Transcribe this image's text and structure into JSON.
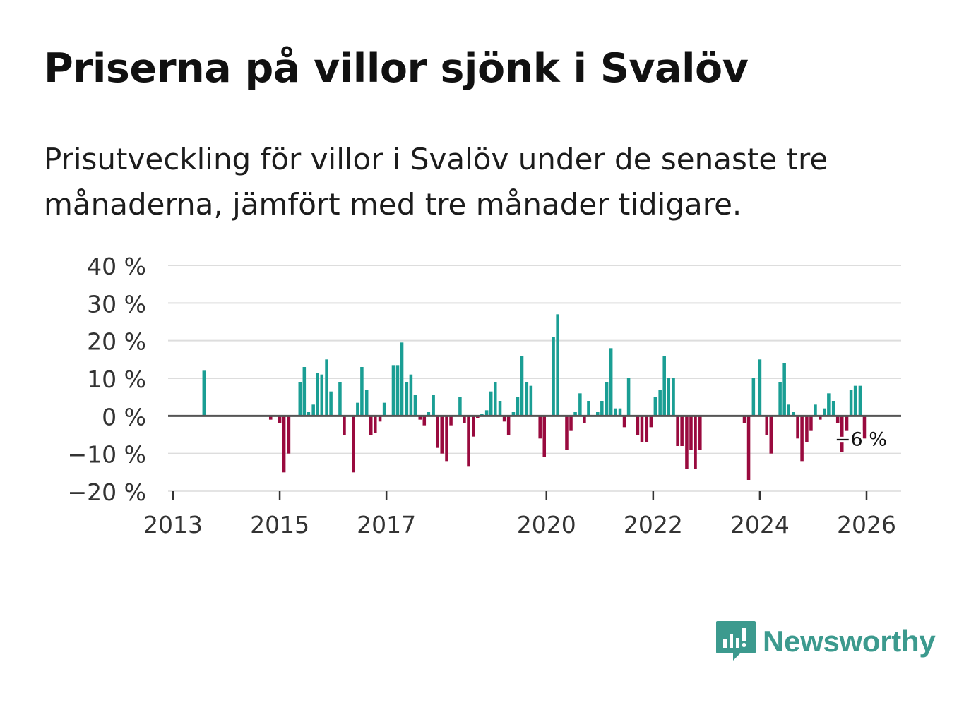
{
  "header": {
    "title": "Priserna på villor sjönk i Svalöv",
    "subtitle": "Prisutveckling för villor i Svalöv under de senaste tre månaderna, jämfört med tre månader tidigare."
  },
  "brand": {
    "name": "Newsworthy",
    "icon": "newsworthy-logo-icon",
    "color": "#3c9a8e"
  },
  "colors": {
    "positive": "#1a9e94",
    "negative": "#990a3e",
    "grid": "#dddddd",
    "zero_line": "#555555"
  },
  "chart_data": {
    "type": "bar",
    "title": "Priserna på villor sjönk i Svalöv",
    "xlabel": "",
    "ylabel": "",
    "ylim": [
      -20,
      40
    ],
    "yticks": [
      40,
      30,
      20,
      10,
      0,
      -10,
      -20
    ],
    "ytick_labels": [
      "40 %",
      "30 %",
      "20 %",
      "10 %",
      "0 %",
      "−10 %",
      "−20 %"
    ],
    "xlim": [
      2013,
      2026.4
    ],
    "xticks": [
      2013,
      2015,
      2017,
      2020,
      2022,
      2024,
      2026
    ],
    "xtick_labels": [
      "2013",
      "2015",
      "2017",
      "2020",
      "2022",
      "2024",
      "2026"
    ],
    "grid": true,
    "bar_width_years": 0.06,
    "annotation": {
      "text": "−6 %",
      "x": 2025.92,
      "y": -6
    },
    "points": [
      {
        "x": 2013.58,
        "y": 12
      },
      {
        "x": 2014.83,
        "y": -1
      },
      {
        "x": 2015.0,
        "y": -2
      },
      {
        "x": 2015.08,
        "y": -15
      },
      {
        "x": 2015.17,
        "y": -10
      },
      {
        "x": 2015.38,
        "y": 9
      },
      {
        "x": 2015.46,
        "y": 13
      },
      {
        "x": 2015.54,
        "y": 1
      },
      {
        "x": 2015.63,
        "y": 3
      },
      {
        "x": 2015.71,
        "y": 11.5
      },
      {
        "x": 2015.79,
        "y": 11
      },
      {
        "x": 2015.88,
        "y": 15
      },
      {
        "x": 2015.96,
        "y": 6.5
      },
      {
        "x": 2016.13,
        "y": 9
      },
      {
        "x": 2016.21,
        "y": -5
      },
      {
        "x": 2016.38,
        "y": -15
      },
      {
        "x": 2016.46,
        "y": 3.5
      },
      {
        "x": 2016.54,
        "y": 13
      },
      {
        "x": 2016.63,
        "y": 7
      },
      {
        "x": 2016.71,
        "y": -5
      },
      {
        "x": 2016.79,
        "y": -4.5
      },
      {
        "x": 2016.88,
        "y": -1.5
      },
      {
        "x": 2016.96,
        "y": 3.5
      },
      {
        "x": 2017.13,
        "y": 13.5
      },
      {
        "x": 2017.21,
        "y": 13.5
      },
      {
        "x": 2017.29,
        "y": 19.5
      },
      {
        "x": 2017.38,
        "y": 9
      },
      {
        "x": 2017.46,
        "y": 11
      },
      {
        "x": 2017.54,
        "y": 5.5
      },
      {
        "x": 2017.63,
        "y": -1
      },
      {
        "x": 2017.71,
        "y": -2.5
      },
      {
        "x": 2017.79,
        "y": 1
      },
      {
        "x": 2017.88,
        "y": 5.5
      },
      {
        "x": 2017.96,
        "y": -8.5
      },
      {
        "x": 2018.04,
        "y": -10
      },
      {
        "x": 2018.13,
        "y": -12
      },
      {
        "x": 2018.21,
        "y": -2.5
      },
      {
        "x": 2018.38,
        "y": 5
      },
      {
        "x": 2018.46,
        "y": -2
      },
      {
        "x": 2018.54,
        "y": -13.5
      },
      {
        "x": 2018.63,
        "y": -5.5
      },
      {
        "x": 2018.71,
        "y": -0.5
      },
      {
        "x": 2018.79,
        "y": 0.5
      },
      {
        "x": 2018.88,
        "y": 1.5
      },
      {
        "x": 2018.96,
        "y": 6.5
      },
      {
        "x": 2019.04,
        "y": 9
      },
      {
        "x": 2019.13,
        "y": 4
      },
      {
        "x": 2019.21,
        "y": -1.5
      },
      {
        "x": 2019.29,
        "y": -5
      },
      {
        "x": 2019.38,
        "y": 1
      },
      {
        "x": 2019.46,
        "y": 5
      },
      {
        "x": 2019.54,
        "y": 16
      },
      {
        "x": 2019.63,
        "y": 9
      },
      {
        "x": 2019.71,
        "y": 8
      },
      {
        "x": 2019.88,
        "y": -6
      },
      {
        "x": 2019.96,
        "y": -11
      },
      {
        "x": 2020.13,
        "y": 21
      },
      {
        "x": 2020.21,
        "y": 27
      },
      {
        "x": 2020.38,
        "y": -9
      },
      {
        "x": 2020.46,
        "y": -4
      },
      {
        "x": 2020.54,
        "y": 1
      },
      {
        "x": 2020.63,
        "y": 6
      },
      {
        "x": 2020.71,
        "y": -2
      },
      {
        "x": 2020.79,
        "y": 4
      },
      {
        "x": 2020.96,
        "y": 1
      },
      {
        "x": 2021.04,
        "y": 4
      },
      {
        "x": 2021.13,
        "y": 9
      },
      {
        "x": 2021.21,
        "y": 18
      },
      {
        "x": 2021.29,
        "y": 2
      },
      {
        "x": 2021.38,
        "y": 2
      },
      {
        "x": 2021.46,
        "y": -3
      },
      {
        "x": 2021.54,
        "y": 10
      },
      {
        "x": 2021.71,
        "y": -5
      },
      {
        "x": 2021.79,
        "y": -7
      },
      {
        "x": 2021.88,
        "y": -7
      },
      {
        "x": 2021.96,
        "y": -3
      },
      {
        "x": 2022.04,
        "y": 5
      },
      {
        "x": 2022.13,
        "y": 7
      },
      {
        "x": 2022.21,
        "y": 16
      },
      {
        "x": 2022.29,
        "y": 10
      },
      {
        "x": 2022.38,
        "y": 10
      },
      {
        "x": 2022.46,
        "y": -8
      },
      {
        "x": 2022.54,
        "y": -8
      },
      {
        "x": 2022.63,
        "y": -14
      },
      {
        "x": 2022.71,
        "y": -9
      },
      {
        "x": 2022.79,
        "y": -14
      },
      {
        "x": 2022.88,
        "y": -9
      },
      {
        "x": 2023.71,
        "y": -2
      },
      {
        "x": 2023.79,
        "y": -17
      },
      {
        "x": 2023.88,
        "y": 10
      },
      {
        "x": 2024.0,
        "y": 15
      },
      {
        "x": 2024.13,
        "y": -5
      },
      {
        "x": 2024.21,
        "y": -10
      },
      {
        "x": 2024.38,
        "y": 9
      },
      {
        "x": 2024.46,
        "y": 14
      },
      {
        "x": 2024.54,
        "y": 3
      },
      {
        "x": 2024.63,
        "y": 1
      },
      {
        "x": 2024.71,
        "y": -6
      },
      {
        "x": 2024.79,
        "y": -12
      },
      {
        "x": 2024.88,
        "y": -7
      },
      {
        "x": 2024.96,
        "y": -4
      },
      {
        "x": 2025.04,
        "y": 3
      },
      {
        "x": 2025.13,
        "y": -1
      },
      {
        "x": 2025.21,
        "y": 2
      },
      {
        "x": 2025.29,
        "y": 6
      },
      {
        "x": 2025.38,
        "y": 4
      },
      {
        "x": 2025.46,
        "y": -2
      },
      {
        "x": 2025.54,
        "y": -9.5
      },
      {
        "x": 2025.63,
        "y": -4
      },
      {
        "x": 2025.71,
        "y": 7
      },
      {
        "x": 2025.79,
        "y": 8
      },
      {
        "x": 2025.88,
        "y": 8
      },
      {
        "x": 2025.96,
        "y": -6
      }
    ]
  }
}
